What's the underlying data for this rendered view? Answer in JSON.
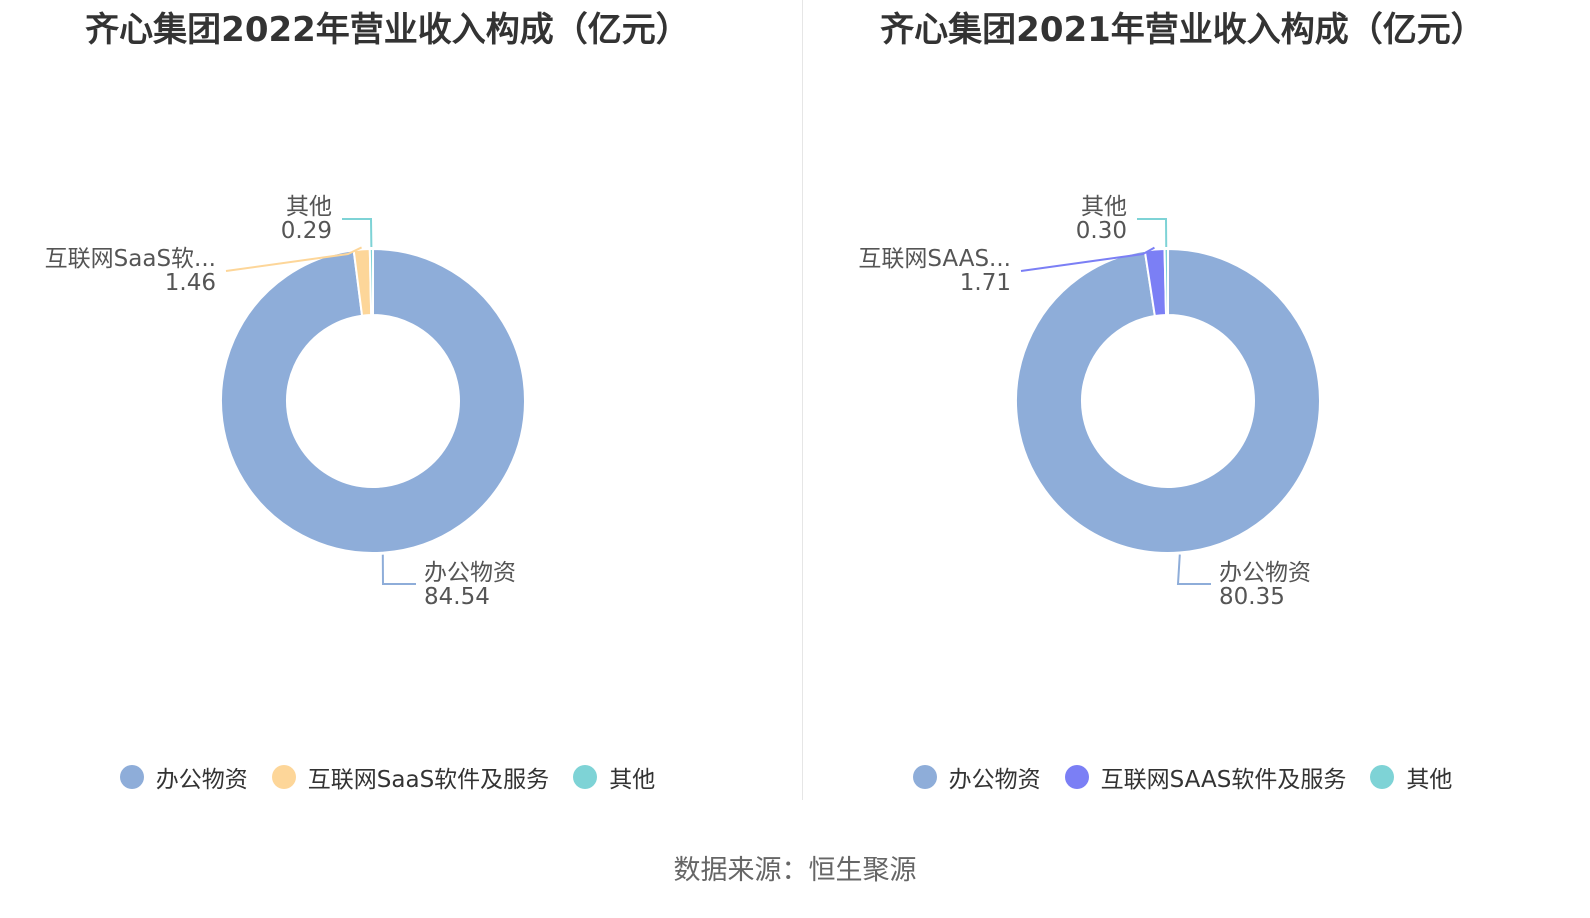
{
  "chart_data": [
    {
      "type": "pie",
      "title": "齐心集团2022年营业收入构成（亿元）",
      "categories": [
        "办公物资",
        "互联网SaaS软件及服务",
        "其他"
      ],
      "values": [
        84.54,
        1.46,
        0.29
      ],
      "slice_labels": [
        "办公物资",
        "互联网SaaS软...",
        "其他"
      ],
      "value_labels": [
        "84.54",
        "1.46",
        "0.29"
      ],
      "colors": [
        "#8eadd9",
        "#fdd699",
        "#7ed3d6"
      ],
      "donut": true,
      "legend": "bottom"
    },
    {
      "type": "pie",
      "title": "齐心集团2021年营业收入构成（亿元）",
      "categories": [
        "办公物资",
        "互联网SAAS软件及服务",
        "其他"
      ],
      "values": [
        80.35,
        1.71,
        0.3
      ],
      "slice_labels": [
        "办公物资",
        "互联网SAAS...",
        "其他"
      ],
      "value_labels": [
        "80.35",
        "1.71",
        "0.30"
      ],
      "colors": [
        "#8eadd9",
        "#7b7ff5",
        "#7ed3d6"
      ],
      "donut": true,
      "legend": "bottom"
    }
  ],
  "source": "数据来源：恒生聚源"
}
